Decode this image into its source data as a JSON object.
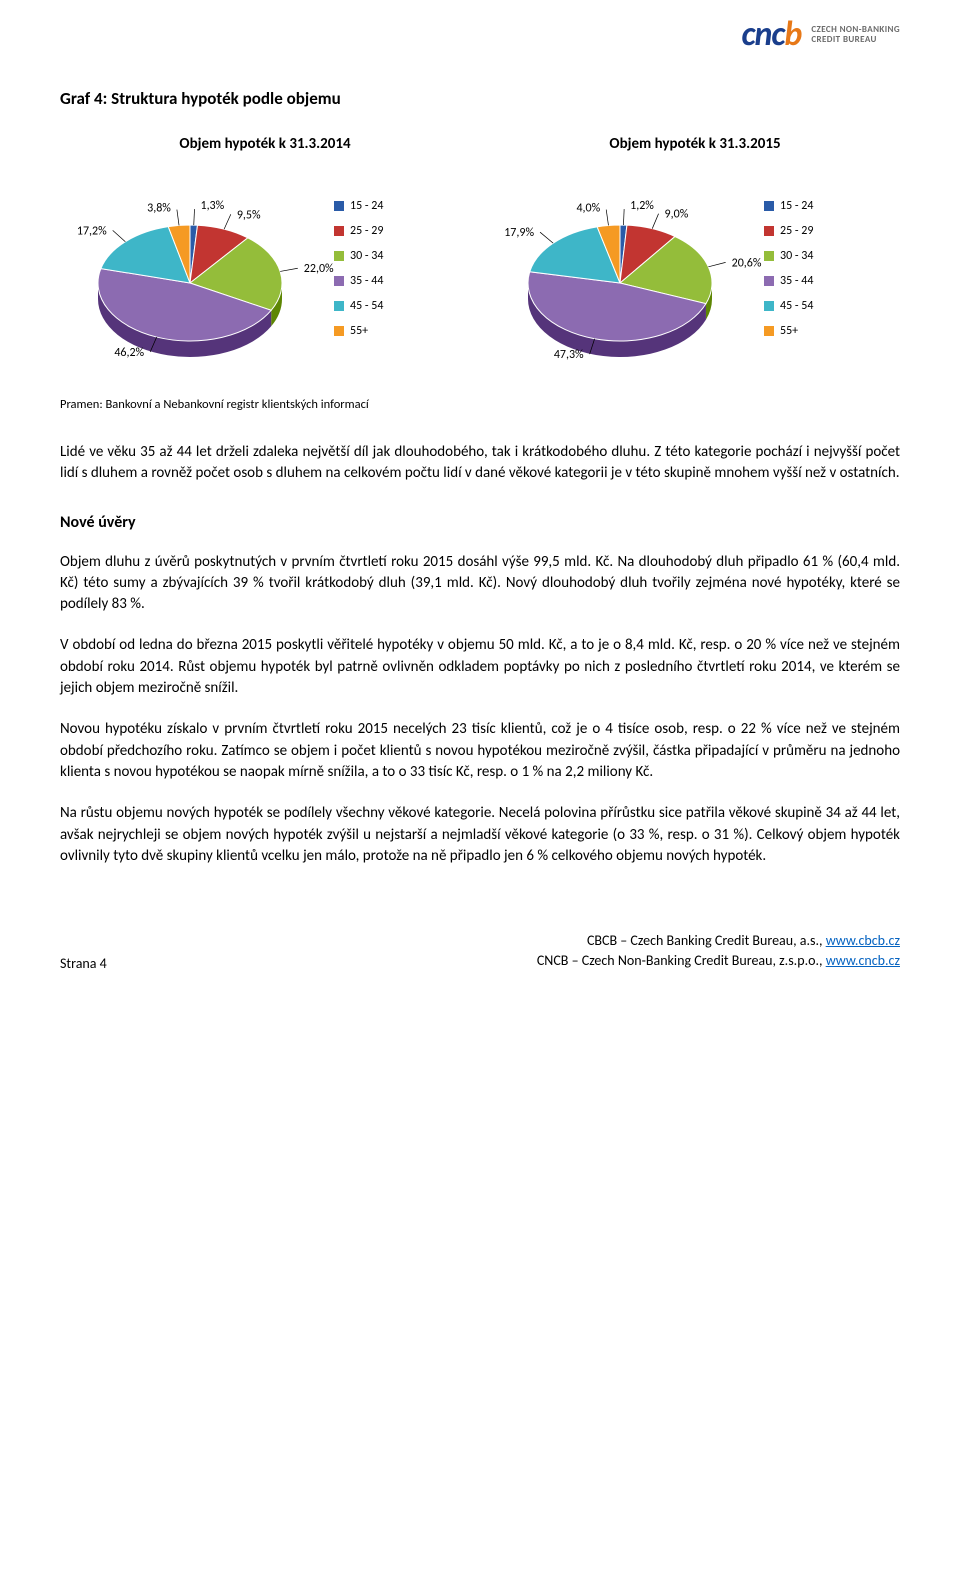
{
  "logo": {
    "letters": [
      "c",
      "n",
      "c",
      "b"
    ],
    "letter_colors": [
      "#1a3e8c",
      "#1a3e8c",
      "#1a3e8c",
      "#e77817"
    ],
    "sub1": "CZECH NON-BANKING",
    "sub2": "CREDIT BUREAU"
  },
  "chart_title": "Graf 4: Struktura hypoték podle objemu",
  "legend_labels": [
    "15 - 24",
    "25 - 29",
    "30 - 34",
    "35 - 44",
    "45 - 54",
    "55+"
  ],
  "legend_colors": [
    "#2a5ba8",
    "#c23531",
    "#94bd3a",
    "#8c6bb1",
    "#3eb6c8",
    "#f59a23"
  ],
  "chart_left": {
    "type": "pie",
    "title": "Objem hypoték k 31.3.2014",
    "categories": [
      "15 - 24",
      "25 - 29",
      "30 - 34",
      "35 - 44",
      "45 - 54",
      "55+"
    ],
    "values": [
      1.3,
      9.5,
      22.0,
      46.2,
      17.2,
      3.8
    ],
    "value_labels": [
      "1,3%",
      "9,5%",
      "22,0%",
      "46,2%",
      "17,2%",
      "3,8%"
    ],
    "slice_colors": [
      "#2a5ba8",
      "#c23531",
      "#94bd3a",
      "#8c6bb1",
      "#3eb6c8",
      "#f59a23"
    ],
    "background_color": "#ffffff",
    "start_angle_deg": -90,
    "tilt": "3d-oblique",
    "label_fontsize": 12
  },
  "chart_right": {
    "type": "pie",
    "title": "Objem hypoték k 31.3.2015",
    "categories": [
      "15 - 24",
      "25 - 29",
      "30 - 34",
      "35 - 44",
      "45 - 54",
      "55+"
    ],
    "values": [
      1.2,
      9.0,
      20.6,
      47.3,
      17.9,
      4.0
    ],
    "value_labels": [
      "1,2%",
      "9,0%",
      "20,6%",
      "47,3%",
      "17,9%",
      "4,0%"
    ],
    "slice_colors": [
      "#2a5ba8",
      "#c23531",
      "#94bd3a",
      "#8c6bb1",
      "#3eb6c8",
      "#f59a23"
    ],
    "background_color": "#ffffff",
    "start_angle_deg": -90,
    "tilt": "3d-oblique",
    "label_fontsize": 12
  },
  "source_line": "Pramen: Bankovní a Nebankovní registr klientských informací",
  "paragraphs": {
    "p1": "Lidé ve věku 35 až 44 let drželi zdaleka největší díl jak dlouhodobého, tak i krátkodobého dluhu. Z této kategorie pochází i nejvyšší počet lidí s dluhem a rovněž počet osob s dluhem na celkovém počtu lidí v dané věkové kategorii je v této skupině mnohem vyšší než v ostatních.",
    "section": "Nové úvěry",
    "p2": "Objem dluhu z úvěrů poskytnutých v prvním čtvrtletí roku 2015 dosáhl výše 99,5 mld. Kč. Na dlouhodobý dluh připadlo 61 % (60,4 mld. Kč) této sumy a zbývajících 39 % tvořil krátkodobý dluh (39,1 mld. Kč). Nový dlouhodobý dluh tvořily zejména nové hypotéky, které se podílely 83 %.",
    "p3": "V období od ledna do března 2015 poskytli věřitelé hypotéky v objemu 50 mld. Kč, a to je o 8,4 mld. Kč, resp. o 20 % více než ve stejném období roku 2014. Růst objemu hypoték byl patrně ovlivněn odkladem poptávky po nich z posledního čtvrtletí roku 2014, ve kterém se jejich objem meziročně snížil.",
    "p4": "Novou hypotéku získalo v prvním čtvrtletí roku 2015 necelých 23 tisíc klientů, což je o 4 tisíce osob, resp. o 22 % více než ve stejném období předchozího roku. Zatímco se objem i počet klientů s novou hypotékou meziročně zvýšil, částka připadající v průměru na jednoho klienta s novou hypotékou se naopak mírně snížila, a to o 33 tisíc Kč, resp. o 1 % na 2,2 miliony Kč.",
    "p5": "Na růstu objemu nových hypoték se podílely všechny věkové kategorie. Necelá polovina přírůstku sice patřila věkové skupině 34 až 44 let, avšak nejrychleji se objem nových hypoték zvýšil u nejstarší a nejmladší věkové kategorie (o 33 %, resp. o 31 %). Celkový objem hypoték ovlivnily tyto dvě skupiny klientů vcelku jen málo, protože na ně připadlo jen 6 % celkového objemu nových hypoték."
  },
  "footer": {
    "page": "Strana 4",
    "line1a": "CBCB – Czech Banking Credit Bureau, a.s., ",
    "line1link": "www.cbcb.cz",
    "line2a": "CNCB – Czech Non-Banking Credit Bureau, z.s.p.o., ",
    "line2link": "www.cncb.cz"
  }
}
